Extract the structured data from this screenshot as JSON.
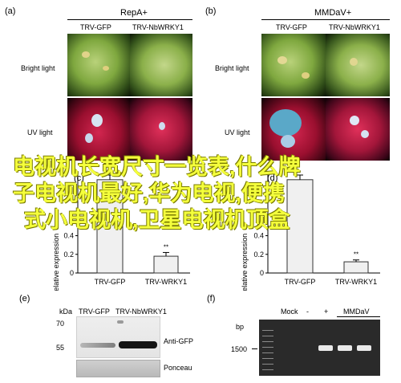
{
  "panels": {
    "a": {
      "label": "(a)",
      "header": "RepA+",
      "columns": [
        "TRV-GFP",
        "TRV-NbWRKY1"
      ],
      "rows": [
        "Bright light",
        "UV light"
      ]
    },
    "b": {
      "label": "(b)",
      "header": "MMDaV+",
      "columns": [
        "TRV-GFP",
        "TRV-NbWRKY1"
      ],
      "rows": [
        "Bright light",
        "UV light"
      ]
    },
    "c": {
      "label": "(c)",
      "ylabel": "Relative expression",
      "yticks": [
        "0",
        "0.2",
        "0.4"
      ],
      "significance": "**"
    },
    "d": {
      "label": "(d)",
      "ylabel": "Relative expression",
      "yticks": [
        "0",
        "0.2",
        "0.4"
      ],
      "significance": "**"
    },
    "e": {
      "label": "(e)",
      "kda": "kDa",
      "lanes": [
        "TRV-GFP",
        "TRV-NbWRKY1"
      ],
      "markers": [
        "70",
        "55"
      ],
      "bands": [
        "Anti-GFP",
        "Ponceau"
      ]
    },
    "f": {
      "label": "(f)",
      "bp": "bp",
      "lanes": [
        "Mock",
        "-",
        "+"
      ],
      "group": "MMDaV",
      "marker": "1500"
    }
  },
  "overlay_text": {
    "line1": "电视机长宽尺寸一览表,什么牌",
    "line2": "子电视机最好,华为电视,便携",
    "line3": "式小电视机,卫星电视机顶盒"
  },
  "chart_data": [
    {
      "type": "bar",
      "panel": "c",
      "categories": [
        "TRV-GFP",
        "TRV-WRKY1"
      ],
      "values": [
        1.0,
        0.18
      ],
      "errors": [
        0.05,
        0.04
      ],
      "ylabel": "Relative expression",
      "annotations": [
        "**"
      ]
    },
    {
      "type": "bar",
      "panel": "d",
      "categories": [
        "TRV-GFP",
        "TRV-WRKY1"
      ],
      "values": [
        1.0,
        0.12
      ],
      "errors": [
        0.05,
        0.02
      ],
      "ylabel": "Relative expression",
      "annotations": [
        "**"
      ]
    }
  ]
}
